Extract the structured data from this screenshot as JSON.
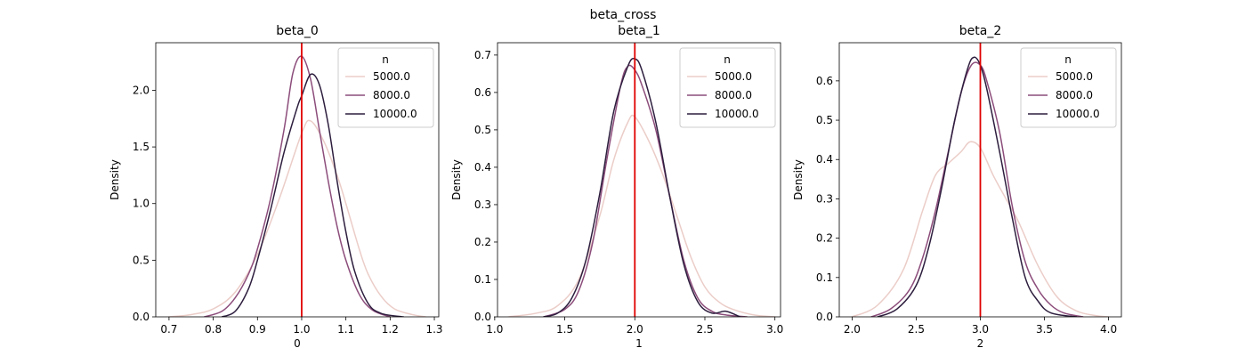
{
  "suptitle": "beta_cross",
  "colors": {
    "series_5000": "#ebcdc8",
    "series_8000": "#8c4d7b",
    "series_10000": "#2d1e3e",
    "reference_line": "#e00000",
    "axis": "#000000"
  },
  "chart_data": [
    {
      "type": "line",
      "title": "beta_0",
      "xlabel": "0",
      "ylabel": "Density",
      "xlim": [
        0.67,
        1.31
      ],
      "ylim": [
        0,
        2.42
      ],
      "xticks": [
        0.7,
        0.8,
        0.9,
        1.0,
        1.1,
        1.2,
        1.3
      ],
      "xtick_labels": [
        "0.7",
        "0.8",
        "0.9",
        "1.0",
        "1.1",
        "1.2",
        "1.3"
      ],
      "yticks": [
        0,
        0.5,
        1.0,
        1.5,
        2.0
      ],
      "ytick_labels": [
        "0.0",
        "0.5",
        "1.0",
        "1.5",
        "2.0"
      ],
      "reference_x": 1.0,
      "legend": {
        "title": "n",
        "location": "upper right"
      },
      "series": [
        {
          "name": "5000.0",
          "color_key": "series_5000",
          "x": [
            0.7,
            0.75,
            0.8,
            0.85,
            0.9,
            0.95,
            1.0,
            1.02,
            1.05,
            1.08,
            1.1,
            1.13,
            1.15,
            1.18,
            1.21,
            1.25,
            1.28
          ],
          "y": [
            0.0,
            0.02,
            0.07,
            0.22,
            0.55,
            1.05,
            1.62,
            1.73,
            1.55,
            1.25,
            1.0,
            0.6,
            0.38,
            0.18,
            0.07,
            0.02,
            0.0
          ]
        },
        {
          "name": "8000.0",
          "color_key": "series_8000",
          "x": [
            0.78,
            0.82,
            0.85,
            0.88,
            0.9,
            0.93,
            0.96,
            0.98,
            1.0,
            1.02,
            1.04,
            1.06,
            1.08,
            1.1,
            1.13,
            1.16,
            1.2
          ],
          "y": [
            0.0,
            0.05,
            0.17,
            0.38,
            0.6,
            1.05,
            1.65,
            2.15,
            2.3,
            2.1,
            1.65,
            1.2,
            0.8,
            0.5,
            0.2,
            0.06,
            0.0
          ]
        },
        {
          "name": "10000.0",
          "color_key": "series_10000",
          "x": [
            0.82,
            0.85,
            0.88,
            0.9,
            0.93,
            0.96,
            0.99,
            1.0,
            1.02,
            1.04,
            1.06,
            1.08,
            1.1,
            1.12,
            1.15,
            1.18,
            1.23
          ],
          "y": [
            0.0,
            0.05,
            0.25,
            0.5,
            0.95,
            1.45,
            1.85,
            1.95,
            2.14,
            2.05,
            1.7,
            1.2,
            0.75,
            0.4,
            0.12,
            0.03,
            0.0
          ]
        }
      ]
    },
    {
      "type": "line",
      "title": "beta_1",
      "xlabel": "1",
      "ylabel": "Density",
      "xlim": [
        1.02,
        3.04
      ],
      "ylim": [
        0,
        0.733
      ],
      "xticks": [
        1.0,
        1.5,
        2.0,
        2.5,
        3.0
      ],
      "xtick_labels": [
        "1.0",
        "1.5",
        "2.0",
        "2.5",
        "3.0"
      ],
      "yticks": [
        0,
        0.1,
        0.2,
        0.3,
        0.4,
        0.5,
        0.6,
        0.7
      ],
      "ytick_labels": [
        "0.0",
        "0.1",
        "0.2",
        "0.3",
        "0.4",
        "0.5",
        "0.6",
        "0.7"
      ],
      "reference_x": 2.0,
      "legend": {
        "title": "n",
        "location": "upper right"
      },
      "series": [
        {
          "name": "5000.0",
          "color_key": "series_5000",
          "x": [
            1.1,
            1.3,
            1.45,
            1.6,
            1.75,
            1.85,
            1.95,
            2.0,
            2.1,
            2.2,
            2.3,
            2.4,
            2.5,
            2.6,
            2.7,
            2.85,
            3.0
          ],
          "y": [
            0.0,
            0.01,
            0.03,
            0.1,
            0.27,
            0.42,
            0.52,
            0.535,
            0.47,
            0.38,
            0.27,
            0.16,
            0.08,
            0.04,
            0.02,
            0.005,
            0.0
          ]
        },
        {
          "name": "8000.0",
          "color_key": "series_8000",
          "x": [
            1.35,
            1.5,
            1.6,
            1.7,
            1.8,
            1.9,
            1.95,
            2.0,
            2.05,
            2.15,
            2.25,
            2.35,
            2.45,
            2.55,
            2.65,
            2.8
          ],
          "y": [
            0.0,
            0.02,
            0.07,
            0.2,
            0.42,
            0.62,
            0.67,
            0.66,
            0.62,
            0.5,
            0.32,
            0.15,
            0.05,
            0.015,
            0.005,
            0.0
          ]
        },
        {
          "name": "10000.0",
          "color_key": "series_10000",
          "x": [
            1.35,
            1.45,
            1.55,
            1.65,
            1.75,
            1.85,
            1.95,
            2.0,
            2.05,
            2.15,
            2.25,
            2.35,
            2.45,
            2.55,
            2.65,
            2.75
          ],
          "y": [
            0.0,
            0.01,
            0.05,
            0.15,
            0.33,
            0.55,
            0.67,
            0.69,
            0.66,
            0.52,
            0.32,
            0.14,
            0.04,
            0.01,
            0.015,
            0.0
          ]
        }
      ]
    },
    {
      "type": "line",
      "title": "beta_2",
      "xlabel": "2",
      "ylabel": "Density",
      "xlim": [
        1.9,
        4.1
      ],
      "ylim": [
        0,
        0.697
      ],
      "xticks": [
        2.0,
        2.5,
        3.0,
        3.5,
        4.0
      ],
      "xtick_labels": [
        "2.0",
        "2.5",
        "3.0",
        "3.5",
        "4.0"
      ],
      "yticks": [
        0,
        0.1,
        0.2,
        0.3,
        0.4,
        0.5,
        0.6
      ],
      "ytick_labels": [
        "0.0",
        "0.1",
        "0.2",
        "0.3",
        "0.4",
        "0.5",
        "0.6"
      ],
      "reference_x": 3.0,
      "legend": {
        "title": "n",
        "location": "upper right"
      },
      "series": [
        {
          "name": "5000.0",
          "color_key": "series_5000",
          "x": [
            2.0,
            2.2,
            2.4,
            2.55,
            2.65,
            2.75,
            2.85,
            2.92,
            3.0,
            3.1,
            3.2,
            3.3,
            3.45,
            3.6,
            3.75,
            3.9,
            4.0
          ],
          "y": [
            0.0,
            0.03,
            0.12,
            0.27,
            0.36,
            0.39,
            0.42,
            0.445,
            0.43,
            0.36,
            0.3,
            0.24,
            0.13,
            0.05,
            0.015,
            0.003,
            0.0
          ]
        },
        {
          "name": "8000.0",
          "color_key": "series_8000",
          "x": [
            2.15,
            2.3,
            2.45,
            2.55,
            2.65,
            2.75,
            2.85,
            2.93,
            3.0,
            3.05,
            3.15,
            3.25,
            3.35,
            3.45,
            3.55,
            3.65,
            3.8
          ],
          "y": [
            0.0,
            0.02,
            0.07,
            0.15,
            0.27,
            0.42,
            0.57,
            0.64,
            0.64,
            0.6,
            0.47,
            0.28,
            0.14,
            0.07,
            0.03,
            0.01,
            0.0
          ]
        },
        {
          "name": "10000.0",
          "color_key": "series_10000",
          "x": [
            2.2,
            2.35,
            2.5,
            2.6,
            2.7,
            2.8,
            2.9,
            2.95,
            3.0,
            3.05,
            3.15,
            3.25,
            3.35,
            3.45,
            3.55,
            3.75
          ],
          "y": [
            0.0,
            0.02,
            0.08,
            0.18,
            0.33,
            0.5,
            0.63,
            0.66,
            0.64,
            0.58,
            0.42,
            0.25,
            0.1,
            0.04,
            0.01,
            0.0
          ]
        }
      ]
    }
  ]
}
